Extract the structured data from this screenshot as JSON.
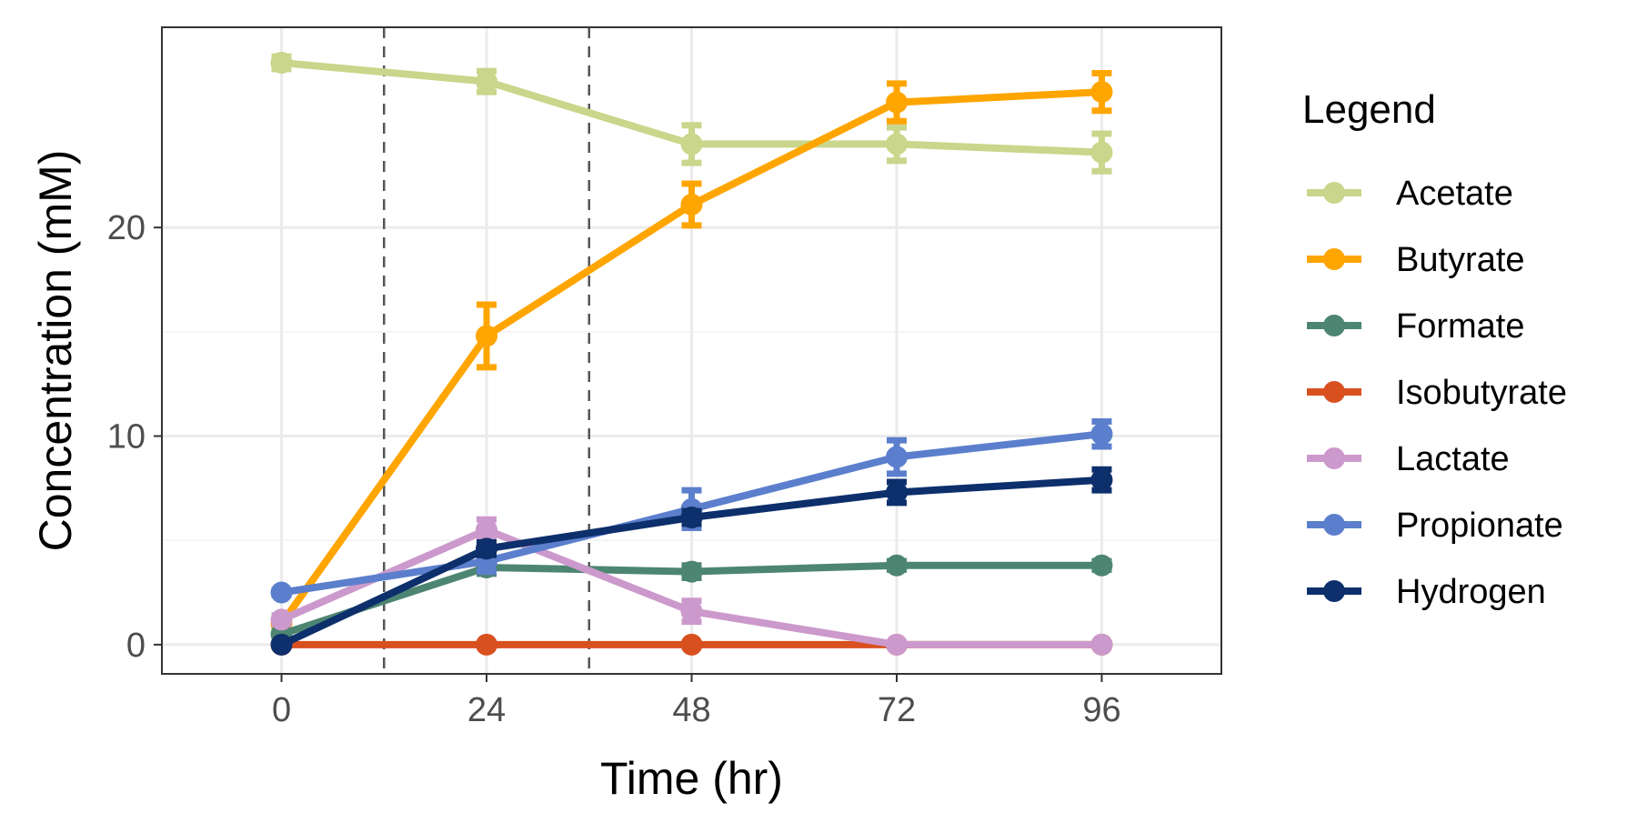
{
  "chart_data": {
    "type": "line",
    "xlabel": "Time (hr)",
    "ylabel": "Concentration (mM)",
    "x": [
      0,
      24,
      48,
      72,
      96
    ],
    "x_ticks": [
      0,
      24,
      48,
      72,
      96
    ],
    "y_ticks": [
      0,
      10,
      20
    ],
    "xlim": [
      -14,
      110
    ],
    "ylim": [
      -1.4,
      29.6
    ],
    "vlines": [
      12,
      36
    ],
    "grid": true,
    "legend": {
      "title": "Legend",
      "position": "right"
    },
    "series": [
      {
        "name": "Acetate",
        "color": "#c9d68b",
        "values": [
          27.9,
          27.0,
          24.0,
          24.0,
          23.6
        ],
        "errors": [
          0.3,
          0.5,
          0.9,
          0.8,
          0.9
        ]
      },
      {
        "name": "Butyrate",
        "color": "#ffa500",
        "values": [
          1.0,
          14.8,
          21.1,
          26.0,
          26.5
        ],
        "errors": [
          0.2,
          1.5,
          1.0,
          0.9,
          0.9
        ]
      },
      {
        "name": "Formate",
        "color": "#4d8573",
        "values": [
          0.5,
          3.7,
          3.5,
          3.8,
          3.8
        ],
        "errors": [
          0.1,
          0.3,
          0.3,
          0.2,
          0.2
        ]
      },
      {
        "name": "Isobutyrate",
        "color": "#d9501f",
        "values": [
          0,
          0,
          0,
          0,
          0
        ],
        "errors": [
          0,
          0,
          0,
          0,
          0
        ]
      },
      {
        "name": "Lactate",
        "color": "#cc99cc",
        "values": [
          1.2,
          5.5,
          1.6,
          0,
          0
        ],
        "errors": [
          0.2,
          0.5,
          0.5,
          0,
          0
        ]
      },
      {
        "name": "Propionate",
        "color": "#5b7fcc",
        "values": [
          2.5,
          4.0,
          6.5,
          9.0,
          10.1
        ],
        "errors": [
          0.1,
          0.5,
          0.9,
          0.8,
          0.6
        ]
      },
      {
        "name": "Hydrogen",
        "color": "#0d2f6b",
        "values": [
          0,
          4.6,
          6.1,
          7.3,
          7.9
        ],
        "errors": [
          0,
          0.3,
          0.3,
          0.5,
          0.5
        ]
      }
    ]
  }
}
